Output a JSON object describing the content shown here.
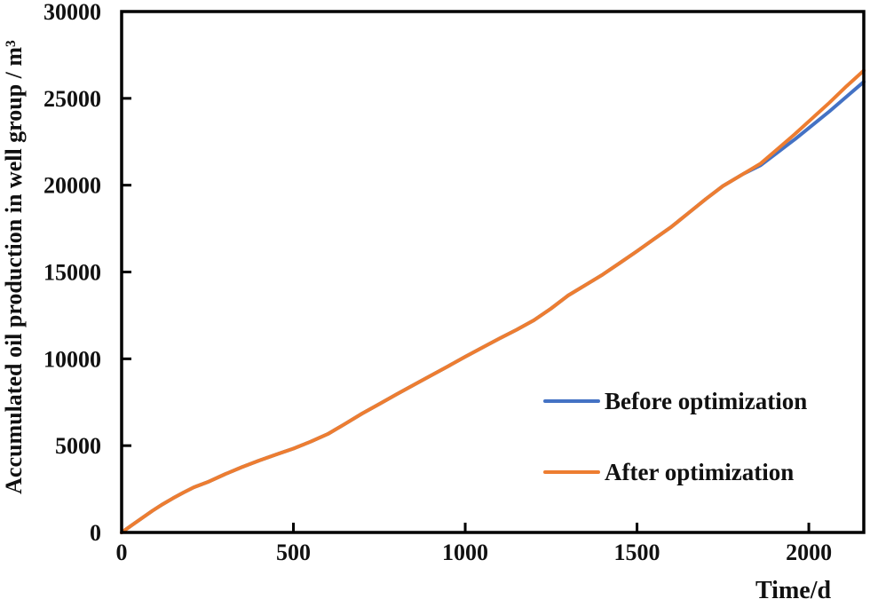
{
  "chart_data": {
    "type": "line",
    "title": "",
    "xlabel": "Time/d",
    "ylabel": "Accumulated oil production in well group / m³",
    "xlim": [
      0,
      2160
    ],
    "ylim": [
      0,
      30000
    ],
    "xticks": [
      0,
      500,
      1000,
      1500,
      2000
    ],
    "yticks": [
      0,
      5000,
      10000,
      15000,
      20000,
      25000,
      30000
    ],
    "grid": false,
    "legend_position": "inside-lower-right",
    "axis_color": "#000000",
    "text_color": "#111111",
    "series": [
      {
        "name": "Before optimization",
        "color": "#4472C4",
        "points": [
          [
            0,
            0
          ],
          [
            30,
            420
          ],
          [
            60,
            840
          ],
          [
            90,
            1250
          ],
          [
            120,
            1630
          ],
          [
            150,
            1980
          ],
          [
            180,
            2300
          ],
          [
            210,
            2600
          ],
          [
            250,
            2900
          ],
          [
            300,
            3350
          ],
          [
            350,
            3760
          ],
          [
            400,
            4140
          ],
          [
            450,
            4490
          ],
          [
            500,
            4830
          ],
          [
            550,
            5230
          ],
          [
            600,
            5670
          ],
          [
            650,
            6250
          ],
          [
            700,
            6850
          ],
          [
            750,
            7400
          ],
          [
            800,
            7950
          ],
          [
            850,
            8500
          ],
          [
            900,
            9030
          ],
          [
            950,
            9570
          ],
          [
            1000,
            10120
          ],
          [
            1050,
            10650
          ],
          [
            1100,
            11170
          ],
          [
            1150,
            11680
          ],
          [
            1200,
            12220
          ],
          [
            1250,
            12900
          ],
          [
            1300,
            13650
          ],
          [
            1350,
            14250
          ],
          [
            1400,
            14850
          ],
          [
            1450,
            15520
          ],
          [
            1500,
            16200
          ],
          [
            1550,
            16900
          ],
          [
            1600,
            17600
          ],
          [
            1650,
            18400
          ],
          [
            1700,
            19200
          ],
          [
            1750,
            19950
          ],
          [
            1810,
            20660
          ],
          [
            1860,
            21150
          ],
          [
            1910,
            21900
          ],
          [
            1960,
            22650
          ],
          [
            2010,
            23450
          ],
          [
            2060,
            24250
          ],
          [
            2110,
            25100
          ],
          [
            2160,
            25950
          ]
        ]
      },
      {
        "name": "After optimization",
        "color": "#ED7D31",
        "points": [
          [
            0,
            0
          ],
          [
            30,
            420
          ],
          [
            60,
            840
          ],
          [
            90,
            1250
          ],
          [
            120,
            1630
          ],
          [
            150,
            1980
          ],
          [
            180,
            2300
          ],
          [
            210,
            2600
          ],
          [
            250,
            2900
          ],
          [
            300,
            3350
          ],
          [
            350,
            3760
          ],
          [
            400,
            4140
          ],
          [
            450,
            4490
          ],
          [
            500,
            4830
          ],
          [
            550,
            5230
          ],
          [
            600,
            5670
          ],
          [
            650,
            6250
          ],
          [
            700,
            6850
          ],
          [
            750,
            7400
          ],
          [
            800,
            7950
          ],
          [
            850,
            8500
          ],
          [
            900,
            9030
          ],
          [
            950,
            9570
          ],
          [
            1000,
            10120
          ],
          [
            1050,
            10650
          ],
          [
            1100,
            11170
          ],
          [
            1150,
            11680
          ],
          [
            1200,
            12220
          ],
          [
            1250,
            12900
          ],
          [
            1300,
            13650
          ],
          [
            1350,
            14250
          ],
          [
            1400,
            14850
          ],
          [
            1450,
            15520
          ],
          [
            1500,
            16200
          ],
          [
            1550,
            16900
          ],
          [
            1600,
            17600
          ],
          [
            1650,
            18400
          ],
          [
            1700,
            19200
          ],
          [
            1750,
            19950
          ],
          [
            1810,
            20660
          ],
          [
            1860,
            21250
          ],
          [
            1910,
            22100
          ],
          [
            1960,
            22950
          ],
          [
            2010,
            23850
          ],
          [
            2060,
            24750
          ],
          [
            2110,
            25700
          ],
          [
            2160,
            26600
          ]
        ]
      }
    ]
  }
}
